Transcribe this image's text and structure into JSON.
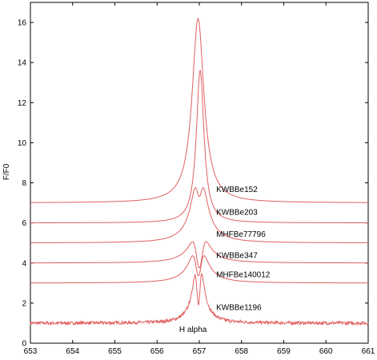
{
  "chart_data": {
    "type": "line",
    "title": "",
    "xlabel": "",
    "ylabel": "F/F0",
    "xlim": [
      653,
      661
    ],
    "ylim": [
      0,
      17
    ],
    "xticks": [
      653,
      654,
      655,
      656,
      657,
      658,
      659,
      660,
      661
    ],
    "yticks": [
      0,
      2,
      4,
      6,
      8,
      10,
      12,
      14,
      16
    ],
    "grid": false,
    "line_color": "#e06060",
    "annotation": {
      "text": "H alpha",
      "x": 656.85,
      "y": 0.55
    },
    "series": [
      {
        "name": "KWBBe152",
        "label_at": [
          657.4,
          7.55
        ],
        "profile": "single",
        "base": 7.0,
        "center": 656.97,
        "peak": 16.2,
        "width": 0.17
      },
      {
        "name": "KWBBe203",
        "label_at": [
          657.4,
          6.4
        ],
        "profile": "single",
        "base": 6.0,
        "center": 657.02,
        "peak": 13.6,
        "width": 0.11
      },
      {
        "name": "MHFBe77796",
        "label_at": [
          657.4,
          5.3
        ],
        "profile": "double",
        "base": 5.0,
        "center": 657.0,
        "peak": 7.9,
        "width": 0.18,
        "dip": 1.6
      },
      {
        "name": "KWBBe347",
        "label_at": [
          657.4,
          4.25
        ],
        "profile": "double",
        "base": 4.0,
        "center": 657.0,
        "peak": 5.3,
        "width": 0.22,
        "dip": 2.0
      },
      {
        "name": "MHFBe140012",
        "label_at": [
          657.4,
          3.3
        ],
        "profile": "double",
        "base": 3.0,
        "center": 656.98,
        "peak": 4.6,
        "width": 0.2,
        "dip": 1.8
      },
      {
        "name": "KWBBe1196",
        "label_at": [
          657.4,
          1.65
        ],
        "profile": "double",
        "base": 1.0,
        "center": 656.98,
        "peak": 3.8,
        "width": 0.12,
        "dip": 2.9,
        "noise": 0.08
      }
    ]
  }
}
